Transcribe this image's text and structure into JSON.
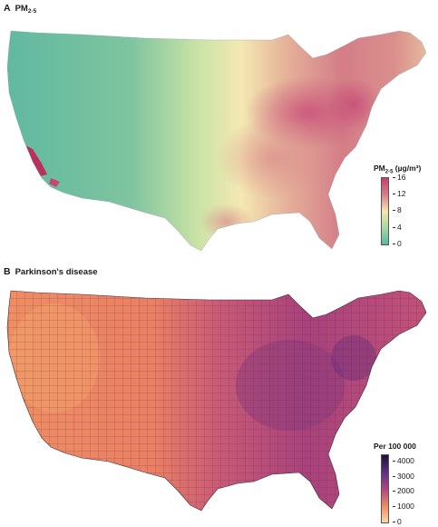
{
  "panel_a": {
    "letter": "A",
    "title": "PM",
    "title_sub": "2·5",
    "legend": {
      "title": "PM",
      "title_sub": "2·5",
      "title_unit": " (µg/m³)",
      "ticks": [
        "16",
        "12",
        "8",
        "4",
        "0"
      ],
      "colors": [
        "#c2416e",
        "#d87f88",
        "#f3e6b0",
        "#a9d9a0",
        "#55b9a4"
      ]
    }
  },
  "panel_b": {
    "letter": "B",
    "title": "Parkinson's disease",
    "legend": {
      "title": "Per 100 000",
      "ticks": [
        "4000",
        "3000",
        "2000",
        "1000",
        "0"
      ],
      "colors": [
        "#1a1333",
        "#5b2f86",
        "#b0457f",
        "#ee8a63",
        "#fbd9a2"
      ]
    }
  }
}
